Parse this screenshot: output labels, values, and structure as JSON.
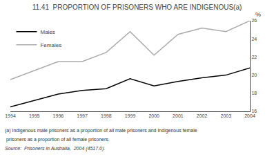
{
  "chart_data": {
    "type": "line",
    "title": "11.41  PROPORTION OF PRISONERS WHO ARE INDIGENOUS(a)",
    "x": [
      1994,
      1995,
      1996,
      1997,
      1998,
      1999,
      2000,
      2001,
      2002,
      2003,
      2004
    ],
    "series": [
      {
        "name": "Males",
        "color": "#000000",
        "values": [
          16.5,
          17.2,
          17.9,
          18.3,
          18.5,
          19.6,
          18.8,
          19.3,
          19.7,
          20.0,
          20.8
        ]
      },
      {
        "name": "Females",
        "color": "#aaaaaa",
        "values": [
          19.5,
          20.5,
          21.5,
          21.5,
          22.5,
          24.8,
          22.2,
          24.5,
          25.2,
          24.8,
          26.0
        ]
      }
    ],
    "xlim": [
      1994,
      2004
    ],
    "xticks": [
      1994,
      1995,
      1996,
      1997,
      1998,
      1999,
      2000,
      2001,
      2002,
      2003,
      2004
    ],
    "ylim": [
      16,
      26
    ],
    "yticks": [
      16,
      18,
      20,
      22,
      24,
      26
    ],
    "ylabel": "%",
    "annotations": [
      "(a) Indigenous male prisoners as a proportion of all male prisoners and Indigenous female",
      " prisoners as a proportion of all female prisoners.",
      "Source:  Prisoners in Australia,  2004 (4517.0)."
    ],
    "grid": false,
    "legend": "upper left"
  }
}
